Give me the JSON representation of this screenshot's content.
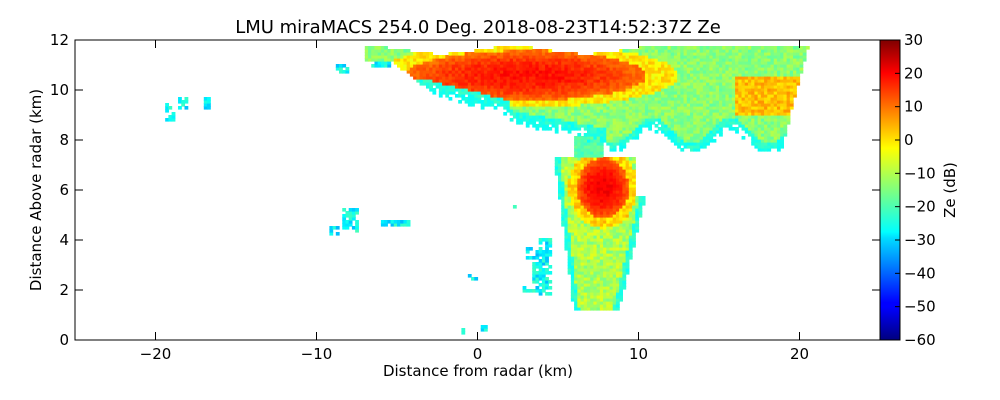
{
  "chart_data": {
    "type": "heatmap",
    "title": "LMU miraMACS 254.0 Deg. 2018-08-23T14:52:37Z  Ze",
    "xlabel": "Distance from radar (km)",
    "ylabel": "Distance Above radar  (km)",
    "xlim": [
      -25,
      25
    ],
    "ylim": [
      0,
      12
    ],
    "xticks": [
      -20,
      -10,
      0,
      10,
      20
    ],
    "xtick_labels": [
      "−20",
      "−10",
      "0",
      "10",
      "20"
    ],
    "yticks": [
      0,
      2,
      4,
      6,
      8,
      10,
      12
    ],
    "ytick_labels": [
      "0",
      "2",
      "4",
      "6",
      "8",
      "10",
      "12"
    ],
    "colorbar": {
      "label": "Ze (dB)",
      "range": [
        -60,
        30
      ],
      "ticks": [
        30,
        20,
        10,
        0,
        -10,
        -20,
        -30,
        -40,
        -50,
        -60
      ],
      "tick_labels": [
        "30",
        "20",
        "10",
        "0",
        "−10",
        "−20",
        "−30",
        "−40",
        "−50",
        "−60"
      ],
      "colormap": "jet"
    },
    "regions": [
      {
        "name": "upper anvil cloud",
        "x_range": [
          -8.5,
          20.5
        ],
        "y_range": [
          8.0,
          12.0
        ],
        "ze_range": [
          -30,
          15
        ]
      },
      {
        "name": "anvil core",
        "x_range": [
          -4.5,
          10.5
        ],
        "y_range": [
          9.2,
          11.8
        ],
        "ze_range": [
          5,
          18
        ]
      },
      {
        "name": "convective column",
        "x_range": [
          5.5,
          10.5
        ],
        "y_range": [
          1.2,
          7.5
        ],
        "ze_range": [
          -25,
          18
        ]
      },
      {
        "name": "column core",
        "x_range": [
          6.0,
          9.5
        ],
        "y_range": [
          4.8,
          7.4
        ],
        "ze_range": [
          5,
          20
        ]
      },
      {
        "name": "echo fragments left",
        "x_range": [
          -19.5,
          -4.5
        ],
        "y_range": [
          4.0,
          9.8
        ],
        "ze_range": [
          -35,
          -15
        ]
      },
      {
        "name": "scattered low echoes",
        "x_range": [
          -1.5,
          4.5
        ],
        "y_range": [
          0.2,
          5.5
        ],
        "ze_range": [
          -45,
          -25
        ]
      }
    ]
  }
}
